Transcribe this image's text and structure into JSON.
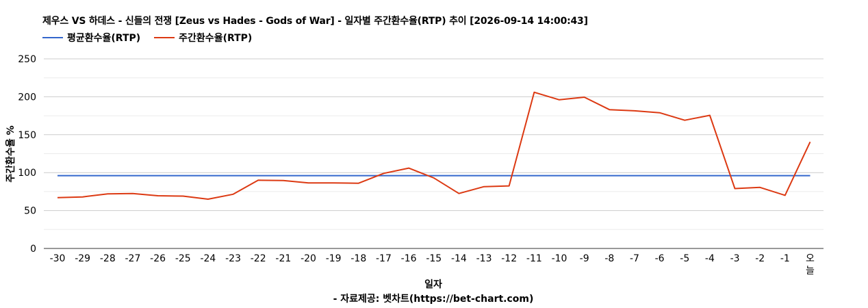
{
  "title": "제우스 VS 하데스 - 신들의 전쟁 [Zeus vs Hades - Gods of War] - 일자별 주간환수율(RTP) 추이 [2026-09-14 14:00:43]",
  "source_note": "- 자료제공: 벳차트(https://bet-chart.com)",
  "colors": {
    "avg": "#3366cc",
    "weekly": "#dc3912",
    "grid": "#cccccc",
    "minor_grid": "#ebebeb",
    "axis": "#333333"
  },
  "chart_data": {
    "type": "line",
    "title": "제우스 VS 하데스 - 신들의 전쟁 [Zeus vs Hades - Gods of War] - 일자별 주간환수율(RTP) 추이 [2026-09-14 14:00:43]",
    "xlabel": "일자",
    "ylabel": "주간환수율 %",
    "ylim": [
      0,
      250
    ],
    "yticks": [
      "0",
      "50",
      "100",
      "150",
      "200",
      "250"
    ],
    "grid": true,
    "legend_position": "top-left",
    "categories": [
      "-30",
      "-29",
      "-28",
      "-27",
      "-26",
      "-25",
      "-24",
      "-23",
      "-22",
      "-21",
      "-20",
      "-19",
      "-18",
      "-17",
      "-16",
      "-15",
      "-14",
      "-13",
      "-12",
      "-11",
      "-10",
      "-9",
      "-8",
      "-7",
      "-6",
      "-5",
      "-4",
      "-3",
      "-2",
      "-1",
      "오늘"
    ],
    "series": [
      {
        "name": "평균환수율(RTP)",
        "color": "#3366cc",
        "values": [
          96,
          96,
          96,
          96,
          96,
          96,
          96,
          96,
          96,
          96,
          96,
          96,
          96,
          96,
          96,
          96,
          96,
          96,
          96,
          96,
          96,
          96,
          96,
          96,
          96,
          96,
          96,
          96,
          96,
          96,
          96
        ]
      },
      {
        "name": "주간환수율(RTP)",
        "color": "#dc3912",
        "values": [
          67,
          68,
          72,
          72.5,
          69.5,
          69,
          65,
          71.5,
          90,
          89.5,
          86.5,
          86.5,
          86,
          99,
          106,
          93,
          72.5,
          81.5,
          82.5,
          206,
          196,
          199.5,
          183,
          181.5,
          179,
          169,
          175.5,
          79,
          80.5,
          70,
          140.5
        ]
      }
    ]
  }
}
